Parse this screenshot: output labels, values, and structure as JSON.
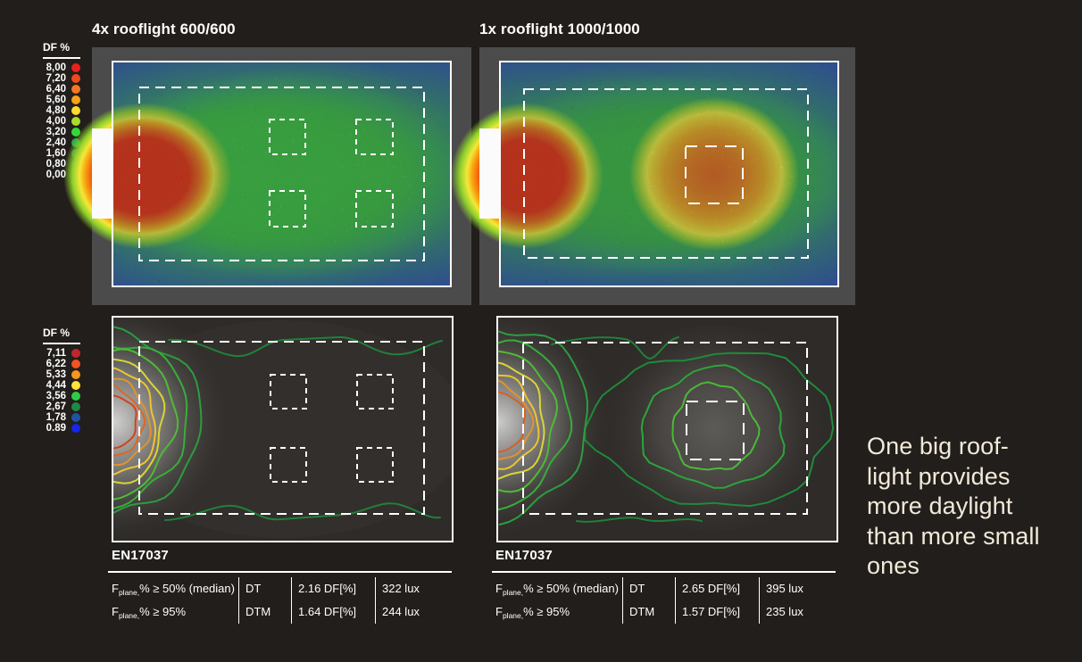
{
  "page": {
    "background": "#221e1b",
    "gray_frame": "#4b4b4b",
    "contour_bg": "#2e2b28"
  },
  "panels": [
    {
      "title": "4x rooflight 600/600"
    },
    {
      "title": "1x rooflight 1000/1000"
    }
  ],
  "legends": [
    {
      "label": "DF %",
      "entries": [
        {
          "value": "8,00",
          "color": "#e8211c"
        },
        {
          "value": "7,20",
          "color": "#ee4a1e"
        },
        {
          "value": "6,40",
          "color": "#f4771f"
        },
        {
          "value": "5,60",
          "color": "#f9a01c"
        },
        {
          "value": "4,80",
          "color": "#ffd92e"
        },
        {
          "value": "4,00",
          "color": "#a8dc2a"
        },
        {
          "value": "3,20",
          "color": "#32d936"
        },
        {
          "value": "2,40",
          "color": "#21a84d"
        },
        {
          "value": "1,60",
          "color": "#1b7a68"
        },
        {
          "value": "0,80",
          "color": "#1d3f9e"
        },
        {
          "value": "0,00",
          "color": "#1a2ae0"
        }
      ]
    },
    {
      "label": "DF %",
      "entries": [
        {
          "value": "7,11",
          "color": "#c0272d"
        },
        {
          "value": "6,22",
          "color": "#f05423"
        },
        {
          "value": "5,33",
          "color": "#f7941d"
        },
        {
          "value": "4,44",
          "color": "#ffe33b"
        },
        {
          "value": "3,56",
          "color": "#2ecc45"
        },
        {
          "value": "2,67",
          "color": "#1d8a47"
        },
        {
          "value": "1,78",
          "color": "#1d55a3"
        },
        {
          "value": "0.89",
          "color": "#1527e8"
        }
      ]
    }
  ],
  "tables": [
    {
      "title": "EN17037",
      "rows": [
        {
          "f_prefix": "F",
          "f_sub": "plane,",
          "f_rest": "% ≥ 50% (median)",
          "metric": "DT",
          "df": "2.16 DF[%]",
          "lux": "322 lux"
        },
        {
          "f_prefix": "F",
          "f_sub": "plane,",
          "f_rest": "% ≥ 95%",
          "metric": "DTM",
          "df": "1.64 DF[%]",
          "lux": "244 lux"
        }
      ]
    },
    {
      "title": "EN17037",
      "rows": [
        {
          "f_prefix": "F",
          "f_sub": "plane,",
          "f_rest": "% ≥ 50% (median)",
          "metric": "DT",
          "df": "2.65 DF[%]",
          "lux": "395 lux"
        },
        {
          "f_prefix": "F",
          "f_sub": "plane,",
          "f_rest": "% ≥ 95%",
          "metric": "DTM",
          "df": "1.57 DF[%]",
          "lux": "235 lux"
        }
      ]
    }
  ],
  "caption": "One big roof-\nlight provides\nmore daylight\nthan more small\nones",
  "contour_colors": {
    "left_arcs": [
      "#2d9c40",
      "#39ad3a",
      "#4fbb37",
      "#d8d634",
      "#eec42e",
      "#e2932c",
      "#da6823",
      "#cf431d"
    ],
    "right_arcs": [
      "#2d9c40",
      "#39ad3a",
      "#4fbb37",
      "#d8d634",
      "#eec42e",
      "#e2932c",
      "#d85f21"
    ],
    "right_rings": [
      "#1f8a3a",
      "#2da43c",
      "#4cb838"
    ],
    "wisp": "#21803a"
  },
  "chart_data": [
    {
      "type": "heatmap",
      "title": "4x rooflight 600/600",
      "legend_title": "DF %",
      "levels_percent": [
        8.0,
        7.2,
        6.4,
        5.6,
        4.8,
        4.0,
        3.2,
        2.4,
        1.6,
        0.8,
        0.0
      ],
      "level_colors": [
        "#e8211c",
        "#ee4a1e",
        "#f4771f",
        "#f9a01c",
        "#ffd92e",
        "#a8dc2a",
        "#32d936",
        "#21a84d",
        "#1b7a68",
        "#1d3f9e",
        "#1a2ae0"
      ],
      "annotations": "room plan false-colour daylight factor; red hotspot (DF ≥ 8%) at left facade window; green field (DF ≈ 2.4–4.0%) under four dashed 600×600 rooflight outlines; blue (DF ≤ 0.8%) at room edges"
    },
    {
      "type": "heatmap",
      "title": "1x rooflight 1000/1000",
      "legend_title": "DF %",
      "levels_percent": [
        8.0,
        7.2,
        6.4,
        5.6,
        4.8,
        4.0,
        3.2,
        2.4,
        1.6,
        0.8,
        0.0
      ],
      "level_colors": [
        "#e8211c",
        "#ee4a1e",
        "#f4771f",
        "#f9a01c",
        "#ffd92e",
        "#a8dc2a",
        "#32d936",
        "#21a84d",
        "#1b7a68",
        "#1d3f9e",
        "#1a2ae0"
      ],
      "annotations": "red hotspot (DF ≥ 8%) at left facade window; orange hotspot (DF ≈ 5.6–7.2%) under single dashed 1000×1000 rooflight outline"
    },
    {
      "type": "contour",
      "title": "4x rooflight 600/600 isolines",
      "legend_title": "DF %",
      "levels_percent": [
        7.11,
        6.22,
        5.33,
        4.44,
        3.56,
        2.67,
        1.78,
        0.89
      ],
      "level_colors": [
        "#c0272d",
        "#f05423",
        "#f7941d",
        "#ffe33b",
        "#2ecc45",
        "#1d8a47",
        "#1d55a3",
        "#1527e8"
      ],
      "annotations": "nested DF isolines radiating from left window only; faint green isolines at top and bottom room boundary"
    },
    {
      "type": "contour",
      "title": "1x rooflight 1000/1000 isolines",
      "legend_title": "DF %",
      "levels_percent": [
        7.11,
        6.22,
        5.33,
        4.44,
        3.56,
        2.67,
        1.78,
        0.89
      ],
      "level_colors": [
        "#c0272d",
        "#f05423",
        "#f7941d",
        "#ffe33b",
        "#2ecc45",
        "#1d8a47",
        "#1d55a3",
        "#1527e8"
      ],
      "annotations": "nested isolines at left window plus three concentric green isolines around the central 1000×1000 rooflight"
    },
    {
      "type": "table",
      "title": "EN17037",
      "rows": [
        [
          "Fplane,% ≥ 50% (median)",
          "DT",
          "2.16 DF[%]",
          "322 lux"
        ],
        [
          "Fplane,% ≥ 95%",
          "DTM",
          "1.64 DF[%]",
          "244 lux"
        ]
      ]
    },
    {
      "type": "table",
      "title": "EN17037",
      "rows": [
        [
          "Fplane,% ≥ 50% (median)",
          "DT",
          "2.65 DF[%]",
          "395 lux"
        ],
        [
          "Fplane,% ≥ 95%",
          "DTM",
          "1.57 DF[%]",
          "235 lux"
        ]
      ]
    }
  ]
}
